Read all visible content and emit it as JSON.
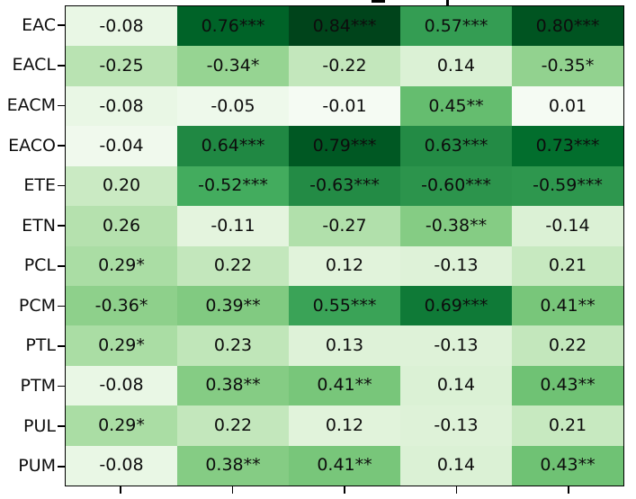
{
  "figure": {
    "background": "#ffffff",
    "border_color": "#000000",
    "text_color": "#0d0d0d",
    "tick_color": "#000000"
  },
  "chart_data": {
    "type": "heatmap",
    "rows": [
      "EAC",
      "EACL",
      "EACM",
      "EACO",
      "ETE",
      "ETN",
      "PCL",
      "PCM",
      "PTL",
      "PTM",
      "PUL",
      "PUM"
    ],
    "columns_count": 5,
    "x_tick_labels": [
      "",
      "",
      "",
      "",
      ""
    ],
    "cells": [
      [
        "-0.08",
        "0.76***",
        "0.84***",
        "0.57***",
        "0.80***"
      ],
      [
        "-0.25",
        "-0.34*",
        "-0.22",
        "0.14",
        "-0.35*"
      ],
      [
        "-0.08",
        "-0.05",
        "-0.01",
        "0.45**",
        "0.01"
      ],
      [
        "-0.04",
        "0.64***",
        "0.79***",
        "0.63***",
        "0.73***"
      ],
      [
        "0.20",
        "-0.52***",
        "-0.63***",
        "-0.60***",
        "-0.59***"
      ],
      [
        "0.26",
        "-0.11",
        "-0.27",
        "-0.38**",
        "-0.14"
      ],
      [
        "0.29*",
        "0.22",
        "0.12",
        "-0.13",
        "0.21"
      ],
      [
        "-0.36*",
        "0.39**",
        "0.55***",
        "0.69***",
        "0.41**"
      ],
      [
        "0.29*",
        "0.23",
        "0.13",
        "-0.13",
        "0.22"
      ],
      [
        "-0.08",
        "0.38**",
        "0.41**",
        "0.14",
        "0.43**"
      ],
      [
        "0.29*",
        "0.22",
        "0.12",
        "-0.13",
        "0.21"
      ],
      [
        "-0.08",
        "0.38**",
        "0.41**",
        "0.14",
        "0.43**"
      ]
    ],
    "values": [
      [
        -0.08,
        0.76,
        0.84,
        0.57,
        0.8
      ],
      [
        -0.25,
        -0.34,
        -0.22,
        0.14,
        -0.35
      ],
      [
        -0.08,
        -0.05,
        -0.01,
        0.45,
        0.01
      ],
      [
        -0.04,
        0.64,
        0.79,
        0.63,
        0.73
      ],
      [
        0.2,
        -0.52,
        -0.63,
        -0.6,
        -0.59
      ],
      [
        0.26,
        -0.11,
        -0.27,
        -0.38,
        -0.14
      ],
      [
        0.29,
        0.22,
        0.12,
        -0.13,
        0.21
      ],
      [
        -0.36,
        0.39,
        0.55,
        0.69,
        0.41
      ],
      [
        0.29,
        0.23,
        0.13,
        -0.13,
        0.22
      ],
      [
        -0.08,
        0.38,
        0.41,
        0.14,
        0.43
      ],
      [
        0.29,
        0.22,
        0.12,
        -0.13,
        0.21
      ],
      [
        -0.08,
        0.38,
        0.41,
        0.14,
        0.43
      ]
    ],
    "color_encoding": "absolute_value",
    "colormap": {
      "name": "greens",
      "stops": [
        "#f7fcf5",
        "#e5f5e0",
        "#c7e9c0",
        "#a1d99b",
        "#74c476",
        "#41ab5d",
        "#238b45",
        "#006d2c",
        "#00441b"
      ],
      "abs_max": 0.84
    },
    "annotation_text_color": "#0d0d0d",
    "legend": "none",
    "grid": "off"
  }
}
